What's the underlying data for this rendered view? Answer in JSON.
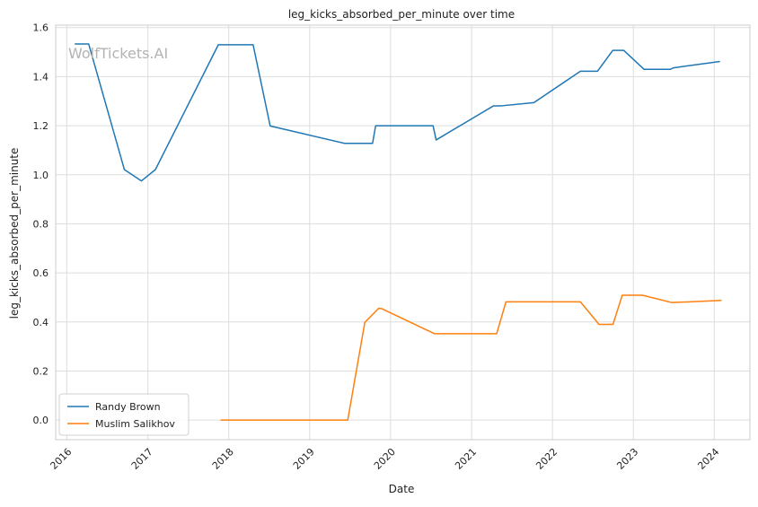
{
  "chart_data": {
    "type": "line",
    "title": "leg_kicks_absorbed_per_minute over time",
    "xlabel": "Date",
    "ylabel": "leg_kicks_absorbed_per_minute",
    "watermark": "WolfTickets.AI",
    "xlim": [
      "2015-11-12",
      "2024-06-10"
    ],
    "ylim": [
      -0.08,
      1.61
    ],
    "x_ticks": [
      {
        "label": "2016",
        "date": "2016-01-01"
      },
      {
        "label": "2017",
        "date": "2017-01-01"
      },
      {
        "label": "2018",
        "date": "2018-01-01"
      },
      {
        "label": "2019",
        "date": "2019-01-01"
      },
      {
        "label": "2020",
        "date": "2020-01-01"
      },
      {
        "label": "2021",
        "date": "2021-01-01"
      },
      {
        "label": "2022",
        "date": "2022-01-01"
      },
      {
        "label": "2023",
        "date": "2023-01-01"
      },
      {
        "label": "2024",
        "date": "2024-01-01"
      }
    ],
    "y_ticks": [
      "0.0",
      "0.2",
      "0.4",
      "0.6",
      "0.8",
      "1.0",
      "1.2",
      "1.4",
      "1.6"
    ],
    "grid": true,
    "legend_position": "bottom-left",
    "series": [
      {
        "name": "Randy Brown",
        "color": "#1f77b4",
        "points": [
          {
            "x": "2016-02-06",
            "y": 1.533
          },
          {
            "x": "2016-04-09",
            "y": 1.533
          },
          {
            "x": "2016-09-17",
            "y": 1.021
          },
          {
            "x": "2016-12-03",
            "y": 0.975
          },
          {
            "x": "2017-02-04",
            "y": 1.021
          },
          {
            "x": "2017-11-15",
            "y": 1.53
          },
          {
            "x": "2018-04-21",
            "y": 1.53
          },
          {
            "x": "2018-07-07",
            "y": 1.199
          },
          {
            "x": "2019-06-08",
            "y": 1.128
          },
          {
            "x": "2019-10-12",
            "y": 1.128
          },
          {
            "x": "2019-10-26",
            "y": 1.2
          },
          {
            "x": "2020-07-11",
            "y": 1.2
          },
          {
            "x": "2020-07-25",
            "y": 1.142
          },
          {
            "x": "2021-04-10",
            "y": 1.281
          },
          {
            "x": "2021-05-15",
            "y": 1.281
          },
          {
            "x": "2021-10-09",
            "y": 1.294
          },
          {
            "x": "2022-05-07",
            "y": 1.422
          },
          {
            "x": "2022-07-23",
            "y": 1.422
          },
          {
            "x": "2022-09-30",
            "y": 1.507
          },
          {
            "x": "2022-11-19",
            "y": 1.507
          },
          {
            "x": "2023-02-18",
            "y": 1.43
          },
          {
            "x": "2023-06-17",
            "y": 1.43
          },
          {
            "x": "2023-07-01",
            "y": 1.436
          },
          {
            "x": "2024-01-27",
            "y": 1.462
          }
        ]
      },
      {
        "name": "Muslim Salikhov",
        "color": "#ff7f0e",
        "points": [
          {
            "x": "2017-11-25",
            "y": 0.0
          },
          {
            "x": "2019-06-22",
            "y": 0.0
          },
          {
            "x": "2019-09-07",
            "y": 0.398
          },
          {
            "x": "2019-11-09",
            "y": 0.456
          },
          {
            "x": "2019-11-23",
            "y": 0.454
          },
          {
            "x": "2020-07-18",
            "y": 0.352
          },
          {
            "x": "2021-04-24",
            "y": 0.352
          },
          {
            "x": "2021-06-05",
            "y": 0.482
          },
          {
            "x": "2022-05-07",
            "y": 0.482
          },
          {
            "x": "2022-07-30",
            "y": 0.39
          },
          {
            "x": "2022-10-01",
            "y": 0.39
          },
          {
            "x": "2022-11-12",
            "y": 0.509
          },
          {
            "x": "2023-02-11",
            "y": 0.509
          },
          {
            "x": "2023-06-24",
            "y": 0.479
          },
          {
            "x": "2024-02-03",
            "y": 0.488
          }
        ]
      }
    ]
  }
}
